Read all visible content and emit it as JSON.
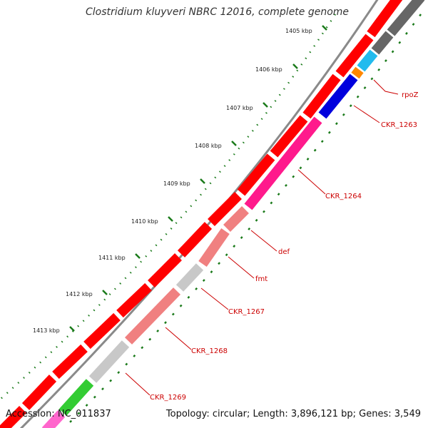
{
  "title": "Clostridium kluyveri NBRC 12016, complete genome",
  "footer": {
    "accession": "Accession: NC_011837",
    "summary": "Topology: circular; Length: 3,896,121 bp; Genes: 3,549"
  },
  "colors": {
    "backbone": "#8a8a8a",
    "cds": "#ff0000",
    "tick": "#1a7a1a",
    "label": "#cc0000",
    "blue": "#0000dd",
    "cyan": "#22bbee",
    "orange": "#ff8800",
    "pink": "#ff1a8c",
    "salmon": "#f08080",
    "gray": "#c8c8c8",
    "green": "#33cc33",
    "darkgray": "#666666"
  },
  "ticks": [
    "1405 kbp",
    "1406 kbp",
    "1407 kbp",
    "1408 kbp",
    "1409 kbp",
    "1410 kbp",
    "1411 kbp",
    "1412 kbp",
    "1413 kbp"
  ],
  "genes": [
    "rpoZ",
    "CKR_1263",
    "CKR_1264",
    "def",
    "fmt",
    "CKR_1267",
    "CKR_1268",
    "CKR_1269"
  ]
}
